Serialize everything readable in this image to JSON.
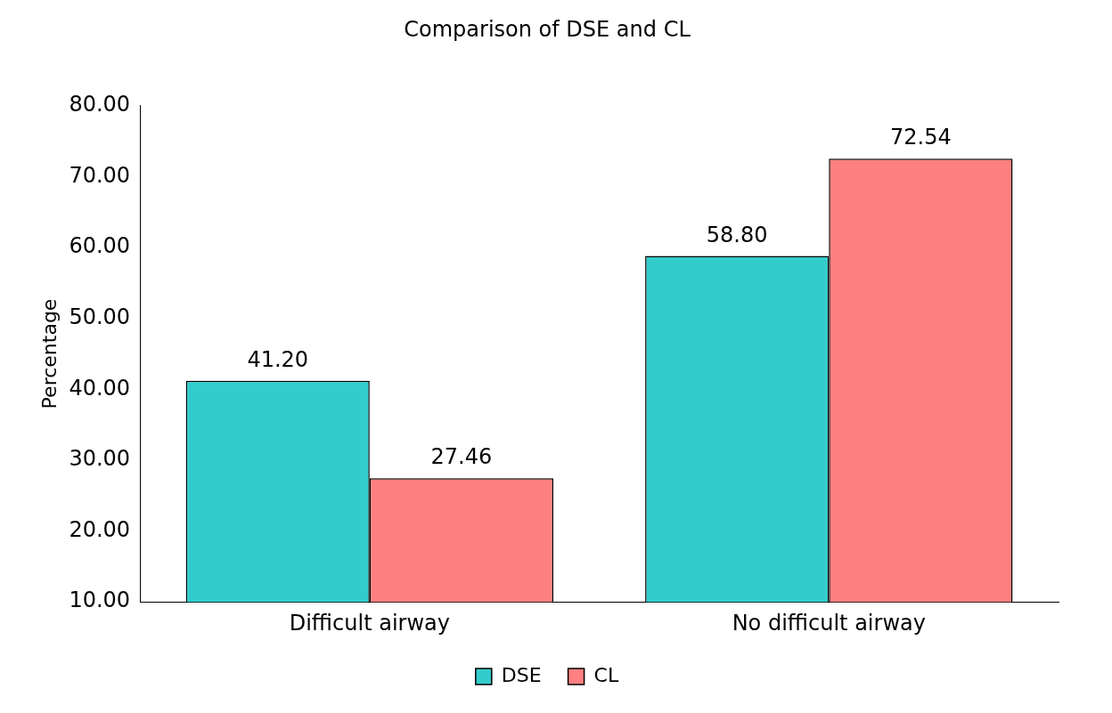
{
  "chart_data": {
    "type": "bar",
    "title": "Comparison of DSE and CL",
    "ylabel": "Percentage",
    "categories": [
      "Difficult airway",
      "No difficult airway"
    ],
    "series": [
      {
        "name": "DSE",
        "color": "#33cccc",
        "values": [
          41.2,
          58.8
        ],
        "value_labels": [
          "41.20",
          "58.80"
        ]
      },
      {
        "name": "CL",
        "color": "#ff8080",
        "values": [
          27.46,
          72.54
        ],
        "value_labels": [
          "27.46",
          "72.54"
        ]
      }
    ],
    "ylim": [
      10,
      80
    ],
    "yticks": [
      {
        "value": 10,
        "label": "10.00"
      },
      {
        "value": 20,
        "label": "20.00"
      },
      {
        "value": 30,
        "label": "30.00"
      },
      {
        "value": 40,
        "label": "40.00"
      },
      {
        "value": 50,
        "label": "50.00"
      },
      {
        "value": 60,
        "label": "60.00"
      },
      {
        "value": 70,
        "label": "70.00"
      },
      {
        "value": 80,
        "label": "80.00"
      }
    ],
    "legend": "bottom"
  }
}
